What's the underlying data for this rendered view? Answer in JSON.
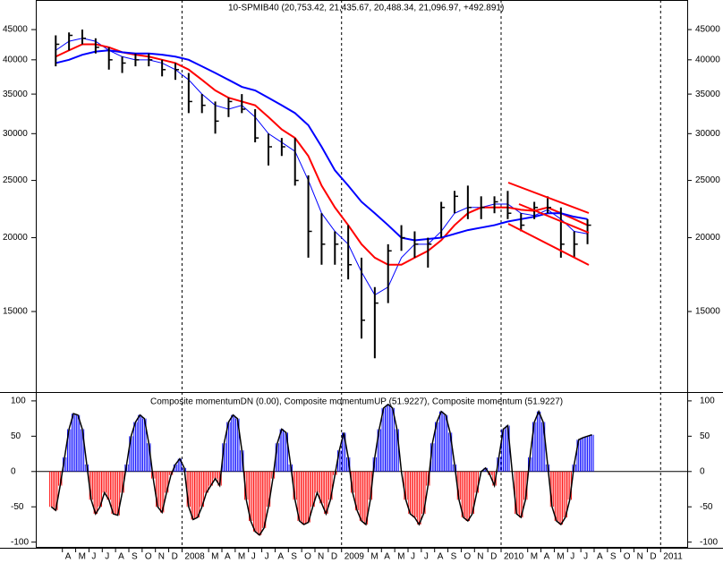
{
  "chart_data": [
    {
      "type": "ohlc",
      "title": "10-SPMIB40 (20,753.42, 21,435.67, 20,488.34, 21,096.97, +492.891)",
      "log": true,
      "color": "#000000",
      "x": [
        "2007-03",
        "2007-04",
        "2007-05",
        "2007-06",
        "2007-07",
        "2007-08",
        "2007-09",
        "2007-10",
        "2007-11",
        "2007-12",
        "2008-01",
        "2008-02",
        "2008-03",
        "2008-04",
        "2008-05",
        "2008-06",
        "2008-07",
        "2008-08",
        "2008-09",
        "2008-10",
        "2008-11",
        "2008-12",
        "2009-01",
        "2009-02",
        "2009-03",
        "2009-04",
        "2009-05",
        "2009-06",
        "2009-07",
        "2009-08",
        "2009-09",
        "2009-10",
        "2009-11",
        "2009-12",
        "2010-01",
        "2010-02",
        "2010-03",
        "2010-04",
        "2010-05",
        "2010-06",
        "2010-07"
      ],
      "high": [
        44000,
        44500,
        45000,
        43500,
        42000,
        40500,
        41000,
        41000,
        40000,
        39500,
        38000,
        35000,
        34000,
        34500,
        35000,
        33000,
        30000,
        29500,
        29500,
        25500,
        22000,
        20500,
        21000,
        18500,
        16500,
        19500,
        21000,
        20500,
        20000,
        23000,
        24000,
        24500,
        23500,
        23500,
        24000,
        22000,
        23000,
        23500,
        22500,
        20500,
        21500
      ],
      "low": [
        39000,
        41500,
        42500,
        41000,
        38500,
        38000,
        39000,
        39000,
        37500,
        37000,
        32500,
        32500,
        30000,
        32000,
        32500,
        29000,
        26500,
        27500,
        24500,
        18500,
        18000,
        18000,
        17000,
        13500,
        12500,
        15500,
        19000,
        18500,
        17800,
        20000,
        22000,
        21500,
        21500,
        22000,
        21500,
        20500,
        21500,
        22000,
        18500,
        18500,
        19500
      ],
      "close": [
        42500,
        44000,
        43500,
        42000,
        40000,
        39500,
        40000,
        40000,
        38500,
        38500,
        34000,
        33500,
        31500,
        34000,
        33000,
        29500,
        28500,
        28500,
        25000,
        20500,
        19500,
        19500,
        18000,
        14500,
        15500,
        19000,
        20000,
        19500,
        19500,
        22500,
        23500,
        22500,
        22500,
        23000,
        22000,
        21000,
        22500,
        22500,
        19500,
        19500,
        21000
      ],
      "series": [
        {
          "color": "#0000ff",
          "line_width": 1,
          "values": [
            41500,
            43000,
            43500,
            43000,
            41500,
            40500,
            40000,
            40000,
            39500,
            38500,
            37000,
            35000,
            33500,
            33000,
            33500,
            32000,
            30000,
            29000,
            28000,
            25000,
            22000,
            20500,
            19500,
            17500,
            16000,
            16500,
            18500,
            19500,
            19500,
            20500,
            22000,
            22500,
            22500,
            22800,
            22800,
            22000,
            21800,
            22300,
            21500,
            20500,
            20300
          ]
        },
        {
          "color": "#ff0000",
          "line_width": 2,
          "values": [
            40500,
            41500,
            42500,
            42500,
            42000,
            41200,
            40800,
            40500,
            40000,
            39500,
            38500,
            37000,
            35500,
            34500,
            34000,
            33500,
            32000,
            30500,
            29500,
            27500,
            24500,
            22500,
            21000,
            19500,
            18500,
            18000,
            18000,
            18500,
            19000,
            19800,
            21000,
            22000,
            22500,
            22500,
            22500,
            22300,
            22200,
            22500,
            22000,
            21500,
            21000
          ]
        },
        {
          "color": "#0000ff",
          "line_width": 2,
          "values": [
            39500,
            40000,
            40800,
            41300,
            41500,
            41200,
            41000,
            41000,
            40800,
            40500,
            40000,
            39000,
            38000,
            37000,
            36000,
            35500,
            34500,
            33500,
            32500,
            31000,
            28500,
            26000,
            24500,
            23000,
            22000,
            21000,
            20000,
            19800,
            19900,
            20000,
            20300,
            20600,
            20800,
            21000,
            21300,
            21500,
            21700,
            22000,
            22000,
            21700,
            21500
          ]
        }
      ],
      "ylim": [
        10960,
        50500
      ],
      "yticks": [
        45000,
        40000,
        35000,
        30000,
        25000,
        20000,
        15000
      ],
      "xlim": [
        "2007-02",
        "2011-03"
      ],
      "xticks": [
        {
          "value": "2007-04",
          "label": "A"
        },
        {
          "value": "2007-05",
          "label": "M"
        },
        {
          "value": "2007-06",
          "label": "J"
        },
        {
          "value": "2007-07",
          "label": "J"
        },
        {
          "value": "2007-08",
          "label": "A"
        },
        {
          "value": "2007-09",
          "label": "S"
        },
        {
          "value": "2007-10",
          "label": "O"
        },
        {
          "value": "2007-11",
          "label": "N"
        },
        {
          "value": "2007-12",
          "label": "D"
        },
        {
          "value": "2008-01",
          "label": "2008"
        },
        {
          "value": "2008-03",
          "label": "M"
        },
        {
          "value": "2008-04",
          "label": "A"
        },
        {
          "value": "2008-05",
          "label": "M"
        },
        {
          "value": "2008-06",
          "label": "J"
        },
        {
          "value": "2008-07",
          "label": "J"
        },
        {
          "value": "2008-08",
          "label": "A"
        },
        {
          "value": "2008-09",
          "label": "S"
        },
        {
          "value": "2008-10",
          "label": "O"
        },
        {
          "value": "2008-11",
          "label": "N"
        },
        {
          "value": "2008-12",
          "label": "D"
        },
        {
          "value": "2009-01",
          "label": "2009"
        },
        {
          "value": "2009-03",
          "label": "M"
        },
        {
          "value": "2009-04",
          "label": "A"
        },
        {
          "value": "2009-05",
          "label": "M"
        },
        {
          "value": "2009-06",
          "label": "J"
        },
        {
          "value": "2009-07",
          "label": "J"
        },
        {
          "value": "2009-08",
          "label": "A"
        },
        {
          "value": "2009-09",
          "label": "S"
        },
        {
          "value": "2009-10",
          "label": "O"
        },
        {
          "value": "2009-11",
          "label": "N"
        },
        {
          "value": "2009-12",
          "label": "D"
        },
        {
          "value": "2010-01",
          "label": "2010"
        },
        {
          "value": "2010-03",
          "label": "M"
        },
        {
          "value": "2010-04",
          "label": "A"
        },
        {
          "value": "2010-05",
          "label": "M"
        },
        {
          "value": "2010-06",
          "label": "J"
        },
        {
          "value": "2010-07",
          "label": "J"
        },
        {
          "value": "2010-08",
          "label": "A"
        },
        {
          "value": "2010-09",
          "label": "S"
        },
        {
          "value": "2010-10",
          "label": "O"
        },
        {
          "value": "2010-11",
          "label": "N"
        },
        {
          "value": "2010-12",
          "label": "D"
        },
        {
          "value": "2011-01",
          "label": "2011"
        }
      ]
    },
    {
      "type": "momentum",
      "title": "Composite momentumDN (0.00), Composite momentumUP (51.9227), Composite momentum (51.9227)",
      "pos_color": "#0000ff",
      "neg_color": "#ff0000",
      "line_color": "#000000",
      "values": [
        -50,
        -55,
        -20,
        20,
        60,
        82,
        80,
        60,
        10,
        -40,
        -60,
        -50,
        -30,
        -40,
        -60,
        -62,
        -30,
        10,
        50,
        70,
        80,
        75,
        40,
        -10,
        -50,
        -58,
        -30,
        -5,
        10,
        18,
        5,
        -50,
        -68,
        -65,
        -50,
        -30,
        -20,
        -10,
        -20,
        40,
        70,
        80,
        75,
        30,
        -40,
        -70,
        -85,
        -90,
        -80,
        -50,
        -10,
        40,
        60,
        55,
        10,
        -40,
        -70,
        -75,
        -72,
        -50,
        -30,
        -45,
        -60,
        -40,
        -5,
        30,
        55,
        20,
        -30,
        -55,
        -70,
        -75,
        -40,
        20,
        60,
        90,
        95,
        90,
        60,
        0,
        -40,
        -60,
        -65,
        -75,
        -60,
        -20,
        40,
        70,
        85,
        80,
        55,
        10,
        -40,
        -65,
        -70,
        -60,
        -30,
        0,
        5,
        -5,
        -20,
        20,
        60,
        65,
        0,
        -60,
        -65,
        -40,
        20,
        70,
        85,
        70,
        10,
        -50,
        -70,
        -75,
        -65,
        -40,
        10,
        45,
        48,
        50,
        52
      ],
      "ylim": [
        -108,
        110
      ],
      "yticks": [
        100,
        50,
        0,
        -50,
        -100
      ]
    }
  ]
}
